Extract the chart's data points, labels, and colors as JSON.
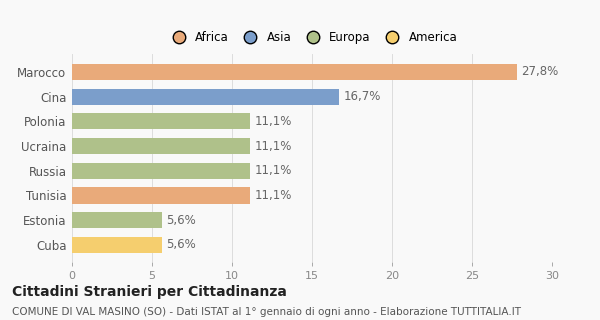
{
  "categories": [
    "Cuba",
    "Estonia",
    "Tunisia",
    "Russia",
    "Ucraina",
    "Polonia",
    "Cina",
    "Marocco"
  ],
  "values": [
    5.6,
    5.6,
    11.1,
    11.1,
    11.1,
    11.1,
    16.7,
    27.8
  ],
  "labels": [
    "5,6%",
    "5,6%",
    "11,1%",
    "11,1%",
    "11,1%",
    "11,1%",
    "16,7%",
    "27,8%"
  ],
  "colors": [
    "#f5ce6e",
    "#afc18a",
    "#e9aa7a",
    "#afc18a",
    "#afc18a",
    "#afc18a",
    "#7b9ecb",
    "#e9aa7a"
  ],
  "legend": [
    {
      "label": "Africa",
      "color": "#e9aa7a"
    },
    {
      "label": "Asia",
      "color": "#7b9ecb"
    },
    {
      "label": "Europa",
      "color": "#afc18a"
    },
    {
      "label": "America",
      "color": "#f5ce6e"
    }
  ],
  "xlim": [
    0,
    30
  ],
  "xticks": [
    0,
    5,
    10,
    15,
    20,
    25,
    30
  ],
  "title": "Cittadini Stranieri per Cittadinanza",
  "subtitle": "COMUNE DI VAL MASINO (SO) - Dati ISTAT al 1° gennaio di ogni anno - Elaborazione TUTTITALIA.IT",
  "background_color": "#f9f9f9",
  "bar_height": 0.65,
  "label_fontsize": 8.5,
  "title_fontsize": 10,
  "subtitle_fontsize": 7.5,
  "tick_fontsize": 8,
  "ytick_fontsize": 8.5
}
